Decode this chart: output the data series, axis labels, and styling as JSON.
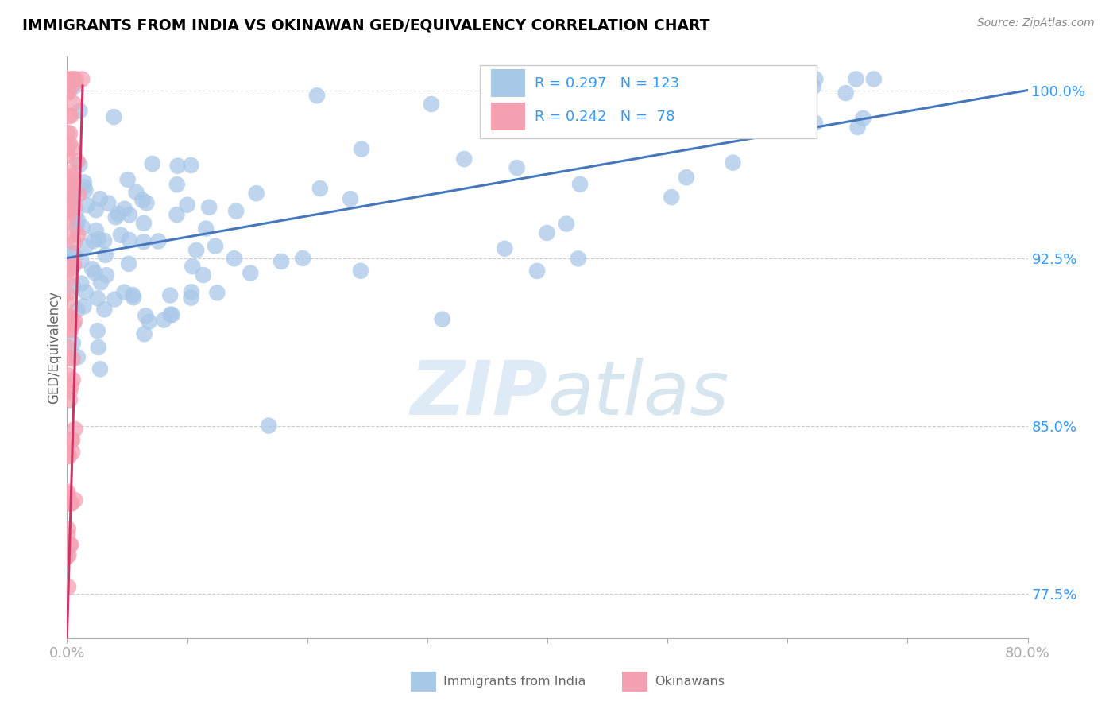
{
  "title": "IMMIGRANTS FROM INDIA VS OKINAWAN GED/EQUIVALENCY CORRELATION CHART",
  "source": "Source: ZipAtlas.com",
  "ylabel": "GED/Equivalency",
  "ytick_labels": [
    "77.5%",
    "85.0%",
    "92.5%",
    "100.0%"
  ],
  "ytick_values": [
    0.775,
    0.85,
    0.925,
    1.0
  ],
  "xlim": [
    0.0,
    0.8
  ],
  "ylim": [
    0.755,
    1.015
  ],
  "legend_entries_text": [
    "R = 0.297   N = 123",
    "R = 0.242   N =  78"
  ],
  "legend_bottom": [
    "Immigrants from India",
    "Okinawans"
  ],
  "india_color": "#a8c8e8",
  "okinawa_color": "#f4a0b0",
  "trend_india_color": "#4477bb",
  "trend_okinawa_color": "#cc3366",
  "watermark": "ZIPatlas",
  "legend_text_color": "#3399ff",
  "ytick_color": "#3399ff",
  "xtick_color": "#3399ff"
}
